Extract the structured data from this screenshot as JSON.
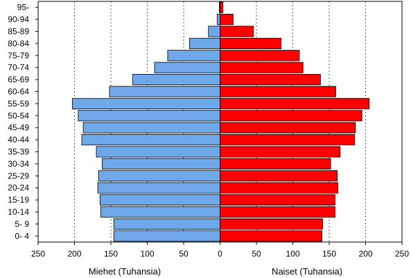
{
  "chart_data": {
    "type": "bar",
    "orientation": "horizontal",
    "layout": "population-pyramid",
    "categories": [
      "95-",
      "90-94",
      "85-89",
      "80-84",
      "75-79",
      "70-74",
      "65-69",
      "60-64",
      "55-59",
      "50-54",
      "45-49",
      "40-44",
      "35-39",
      "30-34",
      "25-29",
      "20-24",
      "15-19",
      "10-14",
      "5- 9",
      "0- 4"
    ],
    "series": [
      {
        "name": "Miehet",
        "side": "left",
        "color": "#6fa8e8",
        "values": [
          1,
          4,
          16,
          42,
          72,
          90,
          120,
          152,
          203,
          195,
          188,
          190,
          170,
          162,
          167,
          168,
          165,
          164,
          146,
          146
        ]
      },
      {
        "name": "Naiset",
        "side": "right",
        "color": "#ff0000",
        "values": [
          4,
          18,
          46,
          84,
          109,
          114,
          138,
          159,
          205,
          195,
          186,
          185,
          165,
          152,
          161,
          162,
          158,
          158,
          141,
          140
        ]
      }
    ],
    "xlim": [
      -250,
      250
    ],
    "x_ticks": [
      -250,
      -200,
      -150,
      -100,
      -50,
      0,
      50,
      100,
      150,
      200,
      250
    ],
    "x_tick_labels": [
      "250",
      "200",
      "150",
      "100",
      "50",
      "0",
      "50",
      "100",
      "150",
      "200",
      "250"
    ],
    "xlabel_left": "Miehet (Tuhansia)",
    "xlabel_right": "Naiset (Tuhansia)",
    "grid": "vertical-dashed",
    "legend": "none"
  }
}
